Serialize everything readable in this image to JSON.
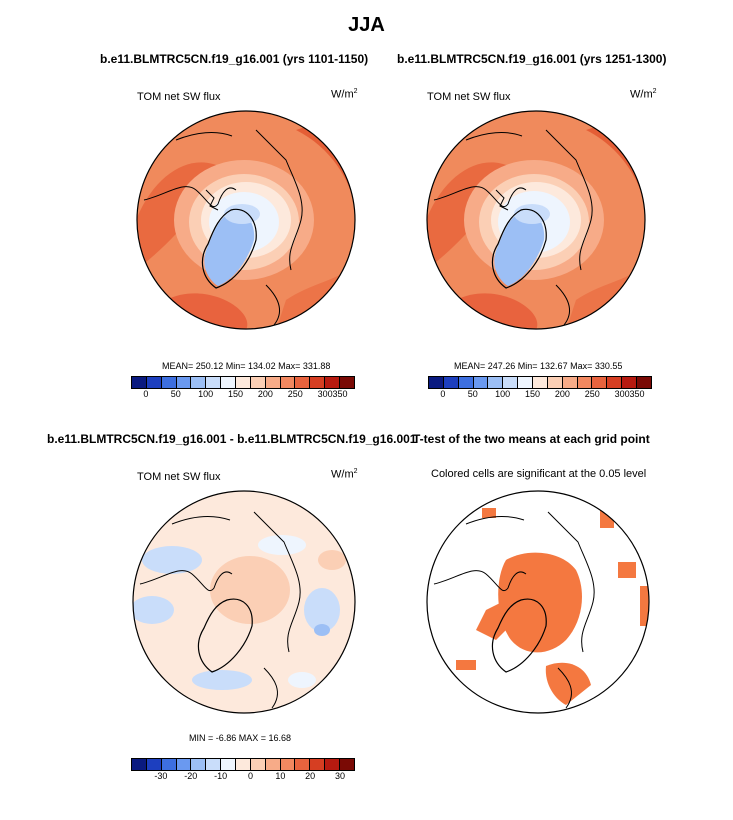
{
  "title": "JJA",
  "panels": {
    "top_left": {
      "case_title": "b.e11.BLMTRC5CN.f19_g16.001 (yrs 1101-1150)",
      "variable": "TOM net SW flux",
      "units_base": "W/m",
      "units_exp": "2",
      "stats": "MEAN= 250.12  Min= 134.02  Max= 331.88"
    },
    "top_right": {
      "case_title": "b.e11.BLMTRC5CN.f19_g16.001 (yrs 1251-1300)",
      "variable": "TOM net SW flux",
      "units_base": "W/m",
      "units_exp": "2",
      "stats": "MEAN= 247.26  Min= 132.67  Max= 330.55"
    },
    "bottom_left": {
      "case_title": "b.e11.BLMTRC5CN.f19_g16.001 - b.e11.BLMTRC5CN.f19_g16.001",
      "variable": "TOM net SW flux",
      "units_base": "W/m",
      "units_exp": "2",
      "stats": "MIN =  -6.86 MAX =  16.68"
    },
    "bottom_right": {
      "case_title": "T-test of the two means at each grid point",
      "note": "Colored cells are significant at the 0.05 level"
    }
  },
  "colorbars": {
    "flux": {
      "ticks": [
        "0",
        "50",
        "100",
        "150",
        "200",
        "250",
        "300",
        "350"
      ],
      "colors": [
        "#0a1a80",
        "#1d3fbf",
        "#3d6fe0",
        "#6a99f0",
        "#9cbff5",
        "#c9ddfa",
        "#eef5fe",
        "#fde9dc",
        "#fbcfb5",
        "#f7ab88",
        "#f28860",
        "#e8633e",
        "#d63e22",
        "#b71a10",
        "#7a0a05"
      ]
    },
    "diff": {
      "ticks": [
        "-30",
        "-20",
        "-10",
        "0",
        "10",
        "20",
        "30"
      ],
      "colors": [
        "#0a1a80",
        "#1d3fbf",
        "#3d6fe0",
        "#6a99f0",
        "#9cbff5",
        "#c9ddfa",
        "#eef5fe",
        "#fde9dc",
        "#fbcfb5",
        "#f7ab88",
        "#f28860",
        "#e8633e",
        "#d63e22",
        "#b71a10",
        "#7a0a05"
      ]
    }
  },
  "significance_color": "#f47840"
}
